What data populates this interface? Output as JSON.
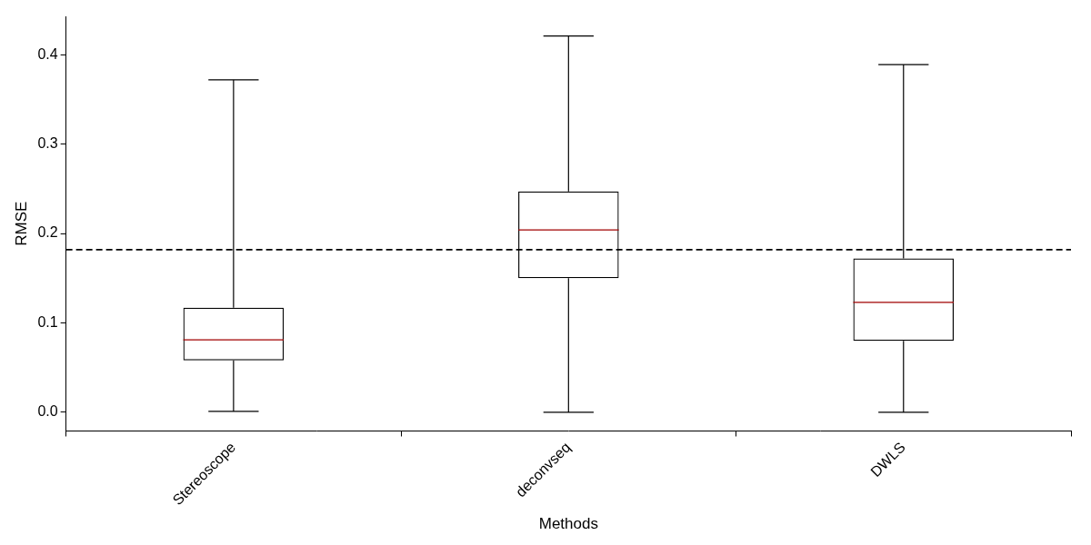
{
  "chart_data": {
    "type": "box",
    "x_label": "Methods",
    "y_label": "RMSE",
    "categories": [
      "Stereoscope",
      "deconvseq",
      "DWLS"
    ],
    "boxes": [
      {
        "whislo": 0.001,
        "q1": 0.058,
        "med": 0.081,
        "q3": 0.117,
        "whishi": 0.372
      },
      {
        "whislo": 0.0,
        "q1": 0.15,
        "med": 0.204,
        "q3": 0.247,
        "whishi": 0.421
      },
      {
        "whislo": 0.0,
        "q1": 0.08,
        "med": 0.123,
        "q3": 0.172,
        "whishi": 0.389
      }
    ],
    "reference_line": 0.182,
    "ylim": [
      -0.021,
      0.443
    ],
    "yticks": [
      {
        "value": 0,
        "label": "0.0"
      },
      0.1,
      0.2,
      0.3,
      0.4
    ],
    "grid": false,
    "color": "#000000"
  }
}
